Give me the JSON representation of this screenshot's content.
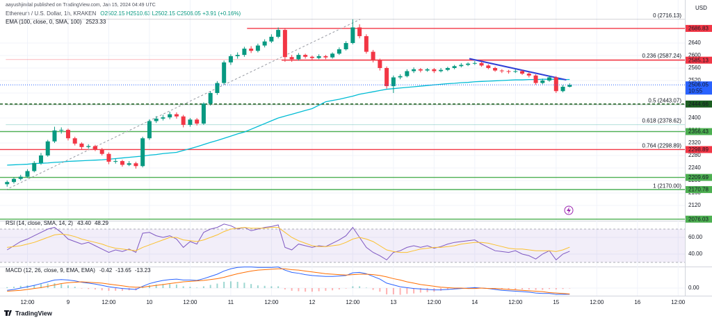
{
  "header": {
    "author": "aayushjindal published on TradingView.com, Jan 15, 2024 04:49 UTC",
    "symbol": "Ethereum / U.S. Dollar, 1h, KRAKEN",
    "ohlc": "O2502.15 H2510.63 L2502.15 C2506.05 +3.91 (+0.16%)"
  },
  "footer": {
    "brand": "TradingView"
  },
  "chart_data": [
    {
      "type": "candlestick",
      "currency": "USD",
      "up_color": "#089981",
      "down_color": "#f23645",
      "grid": true,
      "xlim": [
        -1.05,
        100
      ],
      "xticks": [
        {
          "value": 3,
          "label": "12:00"
        },
        {
          "value": 9,
          "label": "9"
        },
        {
          "value": 15,
          "label": "12:00"
        },
        {
          "value": 21,
          "label": "10"
        },
        {
          "value": 27,
          "label": "12:00"
        },
        {
          "value": 33,
          "label": "11"
        },
        {
          "value": 39,
          "label": "12:00"
        },
        {
          "value": 45,
          "label": "12"
        },
        {
          "value": 51,
          "label": "12:00"
        },
        {
          "value": 57,
          "label": "13"
        },
        {
          "value": 63,
          "label": "12:00"
        },
        {
          "value": 69,
          "label": "14"
        },
        {
          "value": 75,
          "label": "12:00"
        },
        {
          "value": 81,
          "label": "15"
        },
        {
          "value": 87,
          "label": "12:00"
        },
        {
          "value": 93,
          "label": "16"
        },
        {
          "value": 99,
          "label": "12:00"
        }
      ],
      "ylim": [
        2071,
        2760
      ],
      "yticks": [
        2120,
        2160,
        2200,
        2240,
        2280,
        2320,
        2360,
        2400,
        2440,
        2480,
        2520,
        2560,
        2600,
        2640
      ],
      "open": [
        2188,
        2195,
        2205,
        2212,
        2230,
        2256,
        2280,
        2325,
        2360,
        2362,
        2335,
        2318,
        2307,
        2310,
        2300,
        2285,
        2260,
        2262,
        2250,
        2255,
        2246,
        2335,
        2390,
        2398,
        2402,
        2412,
        2405,
        2378,
        2395,
        2382,
        2446,
        2480,
        2512,
        2578,
        2598,
        2602,
        2622,
        2615,
        2632,
        2645,
        2660,
        2682,
        2595,
        2588,
        2602,
        2596,
        2592,
        2598,
        2594,
        2606,
        2620,
        2640,
        2690,
        2662,
        2612,
        2585,
        2560,
        2502,
        2530,
        2534,
        2550,
        2556,
        2552,
        2556,
        2550,
        2554,
        2560,
        2566,
        2570,
        2574,
        2576,
        2568,
        2560,
        2552,
        2550,
        2548,
        2550,
        2542,
        2536,
        2512,
        2520,
        2530,
        2486,
        2500
      ],
      "high": [
        2200,
        2210,
        2218,
        2236,
        2262,
        2288,
        2330,
        2372,
        2370,
        2366,
        2340,
        2322,
        2316,
        2314,
        2304,
        2290,
        2270,
        2266,
        2262,
        2260,
        2340,
        2396,
        2406,
        2410,
        2420,
        2418,
        2410,
        2400,
        2400,
        2450,
        2486,
        2518,
        2584,
        2604,
        2610,
        2628,
        2630,
        2638,
        2652,
        2668,
        2690,
        2686,
        2602,
        2608,
        2606,
        2600,
        2604,
        2602,
        2610,
        2626,
        2646,
        2716,
        2700,
        2668,
        2618,
        2590,
        2565,
        2536,
        2540,
        2556,
        2562,
        2560,
        2560,
        2560,
        2560,
        2564,
        2570,
        2576,
        2578,
        2582,
        2580,
        2572,
        2564,
        2556,
        2554,
        2556,
        2554,
        2546,
        2540,
        2526,
        2536,
        2534,
        2506,
        2511
      ],
      "low": [
        2180,
        2190,
        2200,
        2208,
        2226,
        2250,
        2276,
        2320,
        2350,
        2328,
        2312,
        2300,
        2302,
        2294,
        2280,
        2252,
        2254,
        2244,
        2246,
        2238,
        2242,
        2330,
        2384,
        2392,
        2396,
        2398,
        2370,
        2372,
        2376,
        2378,
        2440,
        2474,
        2508,
        2570,
        2590,
        2596,
        2608,
        2610,
        2626,
        2640,
        2655,
        2580,
        2580,
        2584,
        2590,
        2586,
        2588,
        2588,
        2590,
        2602,
        2616,
        2636,
        2655,
        2606,
        2578,
        2552,
        2494,
        2480,
        2524,
        2530,
        2544,
        2546,
        2548,
        2544,
        2546,
        2550,
        2556,
        2562,
        2566,
        2570,
        2564,
        2556,
        2548,
        2544,
        2542,
        2544,
        2538,
        2530,
        2506,
        2508,
        2516,
        2480,
        2482,
        2498
      ],
      "close": [
        2195,
        2205,
        2212,
        2230,
        2256,
        2280,
        2325,
        2360,
        2362,
        2335,
        2318,
        2307,
        2310,
        2300,
        2285,
        2260,
        2262,
        2250,
        2255,
        2246,
        2335,
        2390,
        2398,
        2402,
        2412,
        2405,
        2378,
        2395,
        2382,
        2446,
        2480,
        2512,
        2578,
        2598,
        2602,
        2622,
        2615,
        2632,
        2645,
        2660,
        2682,
        2595,
        2588,
        2602,
        2596,
        2592,
        2598,
        2594,
        2606,
        2620,
        2640,
        2690,
        2662,
        2612,
        2585,
        2560,
        2502,
        2530,
        2534,
        2550,
        2556,
        2552,
        2556,
        2550,
        2554,
        2560,
        2566,
        2570,
        2574,
        2576,
        2568,
        2560,
        2552,
        2550,
        2548,
        2550,
        2542,
        2536,
        2512,
        2520,
        2530,
        2486,
        2500,
        2506
      ],
      "series": [
        {
          "name": "EMA (100, close, 0, SMA, 100)",
          "color": "#00bcd4",
          "value_label": "2523.33",
          "values": [
            2249,
            2250,
            2251,
            2252,
            2254,
            2255,
            2256,
            2258,
            2259,
            2261,
            2262,
            2263,
            2264,
            2265,
            2266,
            2268,
            2270,
            2272,
            2274,
            2276,
            2278,
            2281,
            2283,
            2286,
            2288,
            2290,
            2296,
            2302,
            2308,
            2315,
            2322,
            2328,
            2335,
            2342,
            2349,
            2355,
            2364,
            2373,
            2382,
            2391,
            2400,
            2406,
            2412,
            2418,
            2424,
            2430,
            2441,
            2452,
            2456,
            2460,
            2465,
            2470,
            2476,
            2480,
            2484,
            2488,
            2492,
            2494,
            2496,
            2498,
            2500,
            2502,
            2504,
            2506,
            2508,
            2510,
            2511,
            2513,
            2514,
            2516,
            2517,
            2518,
            2519,
            2520,
            2521,
            2522,
            2522,
            2523,
            2523,
            2524,
            2524,
            2524,
            2523,
            2523.33
          ]
        }
      ],
      "levels": [
        {
          "value": 2686.83,
          "color": "#f23645",
          "from": 35.4
        },
        {
          "value": 2585.13,
          "color": "#f23645",
          "from": 40.5
        },
        {
          "value": 2444.66,
          "color": "#1b5e20",
          "dash": true
        },
        {
          "value": 2356.43,
          "color": "#4caf50"
        },
        {
          "value": 2298.89,
          "color": "#f23645"
        },
        {
          "value": 2209.69,
          "color": "#4caf50"
        },
        {
          "value": 2170.78,
          "color": "#4caf50"
        },
        {
          "value": 2076.03,
          "color": "#4caf50"
        }
      ],
      "fib": [
        {
          "value": 2716.13,
          "label": "0 (2716.13)",
          "color": "#787b86"
        },
        {
          "value": 2587.24,
          "label": "0.236 (2587.24)",
          "color": "#f23645"
        },
        {
          "value": 2443.07,
          "label": "0.5 (2443.07)",
          "color": "#1b5e20"
        },
        {
          "value": 2378.62,
          "label": "0.618 (2378.62)",
          "color": "#26a69a"
        },
        {
          "value": 2298.89,
          "label": "0.764 (2298.89)",
          "color": "#f23645"
        },
        {
          "value": 2170.0,
          "label": "1 (2170.00)",
          "color": "#089981"
        }
      ],
      "trendlines": [
        {
          "x": [
            68.2,
            82.5
          ],
          "y": [
            2590,
            2522
          ],
          "color": "#2f3fd6"
        },
        {
          "x": [
            -0.2,
            52.1
          ],
          "y": [
            2170,
            2716.13
          ],
          "color": "#9598a1",
          "dash": true
        }
      ],
      "last_price": {
        "value": 2506.05,
        "color": "#2962ff",
        "countdown": "10:55"
      }
    },
    {
      "type": "rsi",
      "title": "RSI (14, close, SMA, 14, 2)",
      "ylim": [
        25,
        80
      ],
      "band": [
        30,
        70
      ],
      "band_color": "#7e57c2",
      "yticks": [
        {
          "value": 60,
          "label": "60.00"
        },
        {
          "value": 40,
          "label": "40.00"
        }
      ],
      "series": [
        {
          "color": "#7e57c2",
          "value_label": "43.40",
          "values": [
            45,
            50,
            55,
            58,
            62,
            66,
            70,
            72,
            66,
            58,
            55,
            52,
            54,
            50,
            46,
            42,
            45,
            43,
            46,
            42,
            65,
            66,
            62,
            60,
            62,
            58,
            48,
            55,
            52,
            66,
            70,
            72,
            76,
            74,
            70,
            72,
            68,
            70,
            72,
            73,
            75,
            48,
            45,
            52,
            50,
            48,
            50,
            49,
            53,
            57,
            62,
            72,
            60,
            48,
            42,
            38,
            33,
            42,
            44,
            48,
            50,
            48,
            50,
            47,
            49,
            52,
            54,
            55,
            56,
            57,
            52,
            48,
            44,
            43,
            42,
            44,
            40,
            38,
            34,
            40,
            44,
            33,
            40,
            43.4
          ]
        },
        {
          "color": "#fbc02d",
          "value_label": "48.29",
          "values": [
            48,
            49,
            50,
            52,
            54,
            57,
            60,
            63,
            64,
            63,
            61,
            58,
            56,
            54,
            52,
            49,
            47,
            46,
            45,
            44,
            48,
            51,
            54,
            57,
            60,
            60,
            57,
            56,
            55,
            57,
            60,
            63,
            67,
            70,
            71,
            72,
            71,
            71,
            71,
            72,
            72,
            66,
            60,
            56,
            53,
            50,
            49,
            49,
            50,
            51,
            54,
            58,
            60,
            58,
            55,
            50,
            45,
            43,
            42,
            42,
            44,
            46,
            47,
            48,
            48,
            49,
            50,
            52,
            53,
            54,
            54,
            53,
            51,
            49,
            47,
            46,
            46,
            45,
            44,
            44,
            44,
            43,
            45,
            48.29
          ]
        }
      ]
    },
    {
      "type": "macd",
      "title": "MACD (12, 26, close, 9, EMA, EMA)",
      "ylim": [
        -17,
        48
      ],
      "yticks": [
        {
          "value": 0,
          "label": "0.00"
        }
      ],
      "series": [
        {
          "kind": "histogram",
          "color": "#26a69a",
          "down_color": "#ff5252",
          "value_label": "-0.42",
          "values": [
            2,
            3,
            5,
            6,
            7,
            9,
            10,
            11,
            9,
            6,
            3,
            -1,
            -2,
            -3,
            -5,
            -6,
            -6,
            -6,
            -5,
            -5,
            2,
            6,
            8,
            9,
            9,
            8,
            4,
            3,
            1,
            4,
            7,
            10,
            14,
            15,
            14,
            12,
            9,
            6,
            5,
            4,
            4,
            -3,
            -6,
            -7,
            -8,
            -8,
            -7,
            -6,
            -5,
            -3,
            -1,
            4,
            4,
            1,
            -4,
            -8,
            -14,
            -14,
            -15,
            -13,
            -12,
            -10,
            -9,
            -8,
            -6,
            -4,
            -2,
            -1,
            1,
            2,
            0,
            0,
            -2,
            -3,
            -3,
            -3,
            -3,
            -3,
            -4,
            -4,
            -2,
            -3,
            -2,
            -0.42
          ]
        },
        {
          "color": "#2962ff",
          "value_label": "-13.65",
          "values": [
            -5,
            -3,
            0,
            3,
            6,
            10,
            14,
            18,
            19,
            18,
            16,
            13,
            11,
            9,
            6,
            3,
            1,
            -1,
            -2,
            -3,
            4,
            10,
            14,
            17,
            19,
            20,
            18,
            18,
            17,
            21,
            26,
            31,
            38,
            43,
            46,
            47,
            47,
            46,
            46,
            46,
            47,
            40,
            35,
            33,
            30,
            28,
            27,
            26,
            26,
            27,
            28,
            34,
            35,
            32,
            26,
            20,
            11,
            7,
            3,
            1,
            -1,
            -2,
            -3,
            -4,
            -4,
            -3,
            -2,
            -1,
            0,
            1,
            0,
            -1,
            -3,
            -5,
            -6,
            -7,
            -8,
            -9,
            -11,
            -12,
            -12,
            -14,
            -14,
            -13.65
          ]
        },
        {
          "color": "#ff6d00",
          "value_label": "-13.23",
          "values": [
            -7,
            -6,
            -5,
            -3,
            -1,
            1,
            4,
            7,
            10,
            12,
            13,
            14,
            13,
            12,
            11,
            9,
            7,
            5,
            3,
            2,
            2,
            4,
            6,
            8,
            10,
            12,
            14,
            15,
            16,
            17,
            19,
            21,
            24,
            28,
            32,
            35,
            38,
            40,
            41,
            42,
            43,
            43,
            41,
            40,
            38,
            36,
            34,
            32,
            31,
            30,
            29,
            30,
            31,
            31,
            30,
            28,
            25,
            21,
            18,
            14,
            11,
            8,
            6,
            4,
            2,
            1,
            0,
            0,
            -1,
            -1,
            0,
            -1,
            -1,
            -2,
            -3,
            -4,
            -5,
            -6,
            -7,
            -8,
            -10,
            -11,
            -12,
            -13.23
          ]
        }
      ]
    }
  ]
}
